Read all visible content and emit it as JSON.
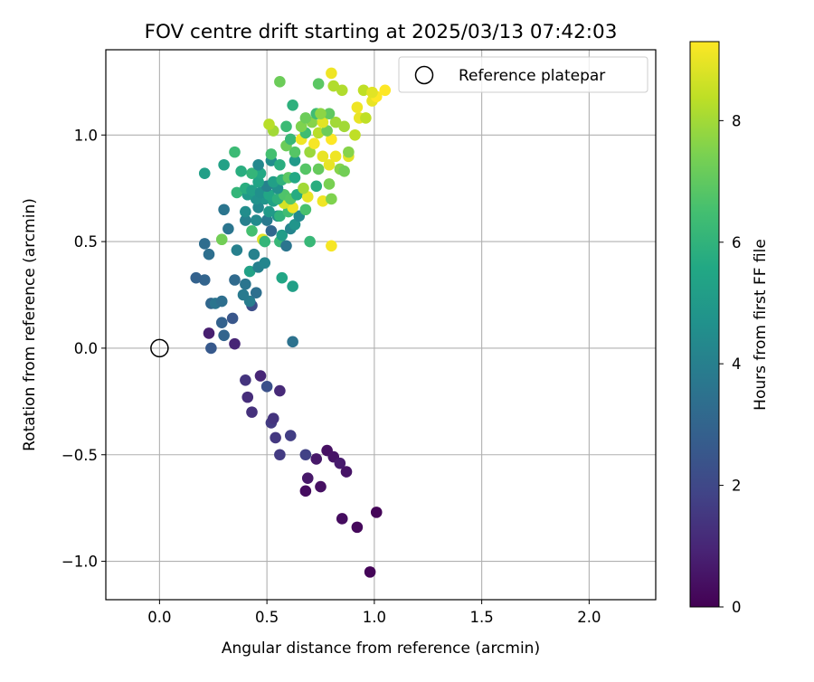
{
  "chart_data": {
    "type": "scatter",
    "title": "FOV centre drift starting at 2025/03/13 07:42:03",
    "xlabel": "Angular distance from reference (arcmin)",
    "ylabel": "Rotation from reference (arcmin)",
    "xlim": [
      -0.25,
      2.31
    ],
    "ylim": [
      -1.18,
      1.4
    ],
    "x_ticks": [
      0.0,
      0.5,
      1.0,
      1.5,
      2.0
    ],
    "x_tick_labels": [
      "0.0",
      "0.5",
      "1.0",
      "1.5",
      "2.0"
    ],
    "y_ticks": [
      -1.0,
      -0.5,
      0.0,
      0.5,
      1.0
    ],
    "y_tick_labels": [
      "−1.0",
      "−0.5",
      "0.0",
      "0.5",
      "1.0"
    ],
    "grid": true,
    "colormap": "viridis",
    "colorbar": {
      "label": "Hours from first FF file",
      "range": [
        0,
        9.3
      ],
      "ticks": [
        0,
        2,
        4,
        6,
        8
      ],
      "tick_labels": [
        "0",
        "2",
        "4",
        "6",
        "8"
      ]
    },
    "legend": {
      "placement": "top-right",
      "entries": [
        {
          "label": "Reference platepar",
          "marker": "open-circle"
        }
      ]
    },
    "reference_point": {
      "x": 0.0,
      "y": 0.0
    },
    "points": [
      [
        0.98,
        -1.05,
        0.1
      ],
      [
        0.92,
        -0.84,
        0.2
      ],
      [
        1.01,
        -0.77,
        0.1
      ],
      [
        0.85,
        -0.8,
        0.3
      ],
      [
        0.68,
        -0.67,
        0.3
      ],
      [
        0.75,
        -0.65,
        0.4
      ],
      [
        0.69,
        -0.61,
        0.6
      ],
      [
        0.87,
        -0.58,
        0.5
      ],
      [
        0.78,
        -0.48,
        0.4
      ],
      [
        0.81,
        -0.51,
        0.5
      ],
      [
        0.73,
        -0.52,
        0.6
      ],
      [
        0.84,
        -0.54,
        0.7
      ],
      [
        0.68,
        -0.5,
        1.8
      ],
      [
        0.56,
        -0.5,
        1.6
      ],
      [
        0.61,
        -0.41,
        1.7
      ],
      [
        0.54,
        -0.42,
        1.5
      ],
      [
        0.52,
        -0.35,
        1.6
      ],
      [
        0.53,
        -0.33,
        1.4
      ],
      [
        0.43,
        -0.3,
        1.3
      ],
      [
        0.41,
        -0.23,
        1.2
      ],
      [
        0.4,
        -0.15,
        1.4
      ],
      [
        0.47,
        -0.13,
        1.0
      ],
      [
        0.56,
        -0.2,
        1.1
      ],
      [
        0.5,
        -0.18,
        2.3
      ],
      [
        0.23,
        0.07,
        0.8
      ],
      [
        0.35,
        0.02,
        1.0
      ],
      [
        0.24,
        0.0,
        2.6
      ],
      [
        0.3,
        0.06,
        3.0
      ],
      [
        0.62,
        0.03,
        3.5
      ],
      [
        0.29,
        0.12,
        2.9
      ],
      [
        0.34,
        0.14,
        2.5
      ],
      [
        0.24,
        0.21,
        3.1
      ],
      [
        0.26,
        0.21,
        3.6
      ],
      [
        0.29,
        0.22,
        3.4
      ],
      [
        0.43,
        0.2,
        2.2
      ],
      [
        0.42,
        0.22,
        3.9
      ],
      [
        0.39,
        0.25,
        3.8
      ],
      [
        0.45,
        0.26,
        3.4
      ],
      [
        0.4,
        0.3,
        3.6
      ],
      [
        0.35,
        0.32,
        3.2
      ],
      [
        0.21,
        0.32,
        3.0
      ],
      [
        0.17,
        0.33,
        2.9
      ],
      [
        0.62,
        0.29,
        5.2
      ],
      [
        0.57,
        0.33,
        5.5
      ],
      [
        0.42,
        0.36,
        5.3
      ],
      [
        0.46,
        0.38,
        4.0
      ],
      [
        0.49,
        0.4,
        4.2
      ],
      [
        0.44,
        0.44,
        4.1
      ],
      [
        0.36,
        0.46,
        4.0
      ],
      [
        0.23,
        0.44,
        3.4
      ],
      [
        0.21,
        0.49,
        3.3
      ],
      [
        0.29,
        0.51,
        7.3
      ],
      [
        0.48,
        0.51,
        8.9
      ],
      [
        0.49,
        0.5,
        6.1
      ],
      [
        0.56,
        0.5,
        6.2
      ],
      [
        0.59,
        0.48,
        3.6
      ],
      [
        0.57,
        0.53,
        5.1
      ],
      [
        0.52,
        0.55,
        3.1
      ],
      [
        0.43,
        0.55,
        6.5
      ],
      [
        0.32,
        0.56,
        3.6
      ],
      [
        0.61,
        0.56,
        4.2
      ],
      [
        0.63,
        0.58,
        4.8
      ],
      [
        0.7,
        0.5,
        6.2
      ],
      [
        0.8,
        0.48,
        9.2
      ],
      [
        0.45,
        0.6,
        4.4
      ],
      [
        0.5,
        0.6,
        3.8
      ],
      [
        0.55,
        0.62,
        4.6
      ],
      [
        0.4,
        0.6,
        4.0
      ],
      [
        0.3,
        0.65,
        3.6
      ],
      [
        0.4,
        0.64,
        4.5
      ],
      [
        0.46,
        0.66,
        4.3
      ],
      [
        0.51,
        0.64,
        5.0
      ],
      [
        0.56,
        0.62,
        6.0
      ],
      [
        0.6,
        0.64,
        6.4
      ],
      [
        0.65,
        0.62,
        4.4
      ],
      [
        0.68,
        0.65,
        6.6
      ],
      [
        0.62,
        0.66,
        9.1
      ],
      [
        0.58,
        0.68,
        8.7
      ],
      [
        0.49,
        0.7,
        4.8
      ],
      [
        0.53,
        0.69,
        5.3
      ],
      [
        0.45,
        0.7,
        4.7
      ],
      [
        0.41,
        0.72,
        5.0
      ],
      [
        0.36,
        0.73,
        6.1
      ],
      [
        0.4,
        0.75,
        5.8
      ],
      [
        0.43,
        0.74,
        5.2
      ],
      [
        0.47,
        0.73,
        4.6
      ],
      [
        0.51,
        0.72,
        5.5
      ],
      [
        0.55,
        0.7,
        5.9
      ],
      [
        0.58,
        0.72,
        6.7
      ],
      [
        0.61,
        0.7,
        6.8
      ],
      [
        0.64,
        0.72,
        5.7
      ],
      [
        0.69,
        0.71,
        9.0
      ],
      [
        0.76,
        0.69,
        9.1
      ],
      [
        0.8,
        0.7,
        7.5
      ],
      [
        0.67,
        0.75,
        8.0
      ],
      [
        0.73,
        0.76,
        5.8
      ],
      [
        0.79,
        0.77,
        7.4
      ],
      [
        0.55,
        0.75,
        4.6
      ],
      [
        0.5,
        0.76,
        4.1
      ],
      [
        0.46,
        0.78,
        5.4
      ],
      [
        0.53,
        0.78,
        5.2
      ],
      [
        0.57,
        0.79,
        6.0
      ],
      [
        0.6,
        0.8,
        6.9
      ],
      [
        0.63,
        0.8,
        5.6
      ],
      [
        0.47,
        0.82,
        5.6
      ],
      [
        0.43,
        0.82,
        6.1
      ],
      [
        0.38,
        0.83,
        5.8
      ],
      [
        0.21,
        0.82,
        5.2
      ],
      [
        0.3,
        0.86,
        5.3
      ],
      [
        0.46,
        0.86,
        4.3
      ],
      [
        0.52,
        0.88,
        4.5
      ],
      [
        0.56,
        0.86,
        5.8
      ],
      [
        0.63,
        0.88,
        5.0
      ],
      [
        0.68,
        0.84,
        6.8
      ],
      [
        0.74,
        0.84,
        7.1
      ],
      [
        0.79,
        0.86,
        9.0
      ],
      [
        0.84,
        0.84,
        7.6
      ],
      [
        0.86,
        0.83,
        7.3
      ],
      [
        0.88,
        0.9,
        8.9
      ],
      [
        0.82,
        0.9,
        9.1
      ],
      [
        0.76,
        0.9,
        9.0
      ],
      [
        0.7,
        0.92,
        7.9
      ],
      [
        0.63,
        0.92,
        6.8
      ],
      [
        0.59,
        0.95,
        7.2
      ],
      [
        0.52,
        0.91,
        6.5
      ],
      [
        0.35,
        0.92,
        6.3
      ],
      [
        0.61,
        0.98,
        6.2
      ],
      [
        0.66,
        0.98,
        9.1
      ],
      [
        0.72,
        0.96,
        9.2
      ],
      [
        0.8,
        0.98,
        9.3
      ],
      [
        0.88,
        0.92,
        7.6
      ],
      [
        0.68,
        1.01,
        6.4
      ],
      [
        0.74,
        1.01,
        8.3
      ],
      [
        0.78,
        1.02,
        7.2
      ],
      [
        0.53,
        1.02,
        8.0
      ],
      [
        0.51,
        1.05,
        8.3
      ],
      [
        0.59,
        1.04,
        6.3
      ],
      [
        0.66,
        1.04,
        7.5
      ],
      [
        0.71,
        1.06,
        7.6
      ],
      [
        0.76,
        1.06,
        8.9
      ],
      [
        0.82,
        1.06,
        8.0
      ],
      [
        0.86,
        1.04,
        8.0
      ],
      [
        0.93,
        1.08,
        9.0
      ],
      [
        0.96,
        1.08,
        8.4
      ],
      [
        0.91,
        1.0,
        8.4
      ],
      [
        0.73,
        1.1,
        6.4
      ],
      [
        0.79,
        1.1,
        7.0
      ],
      [
        0.68,
        1.08,
        7.2
      ],
      [
        0.62,
        1.14,
        5.9
      ],
      [
        0.75,
        1.1,
        7.7
      ],
      [
        0.92,
        1.13,
        9.1
      ],
      [
        0.99,
        1.16,
        9.0
      ],
      [
        1.01,
        1.18,
        9.3
      ],
      [
        1.05,
        1.21,
        9.3
      ],
      [
        0.95,
        1.21,
        8.4
      ],
      [
        0.85,
        1.21,
        8.2
      ],
      [
        0.74,
        1.24,
        6.9
      ],
      [
        0.81,
        1.23,
        8.2
      ],
      [
        0.8,
        1.29,
        9.1
      ],
      [
        0.56,
        1.25,
        7.2
      ],
      [
        0.99,
        1.2,
        8.9
      ]
    ]
  }
}
